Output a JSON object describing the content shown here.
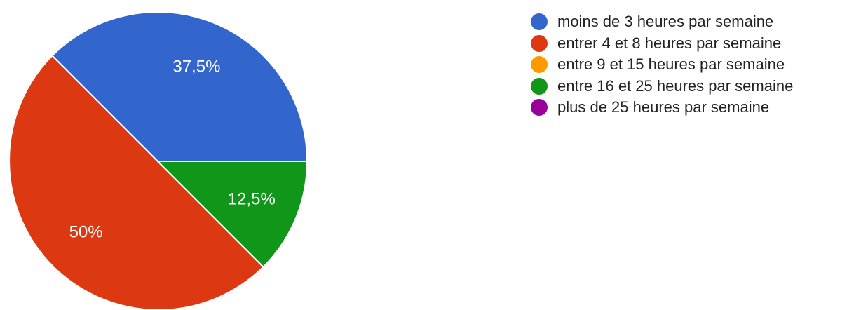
{
  "chart_data": {
    "type": "pie",
    "title": "",
    "categories": [
      "moins de 3 heures par semaine",
      "entrer 4 et 8 heures par semaine",
      "entre 9 et 15 heures par semaine",
      "entre 16 et 25 heures par semaine",
      "plus de 25 heures par semaine"
    ],
    "values": [
      37.5,
      50,
      0,
      12.5,
      0
    ],
    "slice_labels": [
      "37,5%",
      "50%",
      "",
      "12,5%",
      ""
    ],
    "colors": [
      "#3366cc",
      "#dc3912",
      "#ff9900",
      "#109618",
      "#990099"
    ],
    "legend_position": "right"
  }
}
